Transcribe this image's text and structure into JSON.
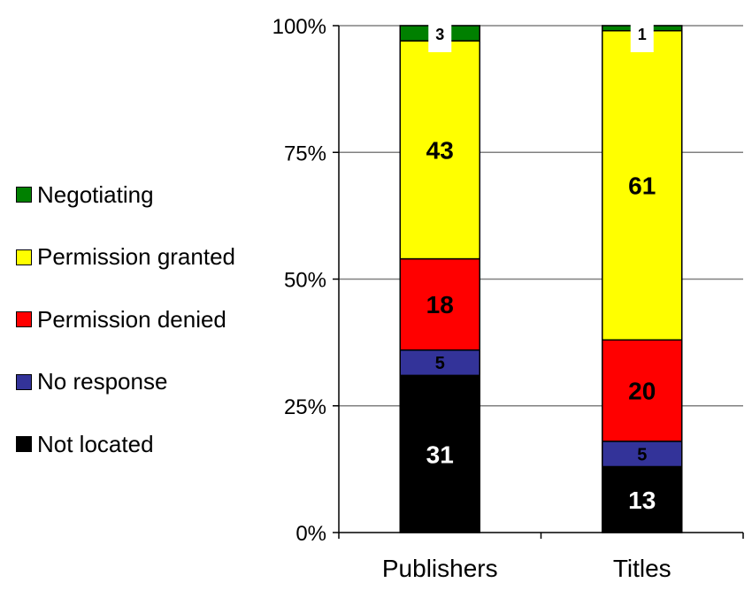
{
  "chart_data": {
    "type": "bar",
    "stacked": "percent",
    "categories": [
      "Publishers",
      "Titles"
    ],
    "series": [
      {
        "name": "Not located",
        "color": "#000000",
        "values": [
          31,
          13
        ],
        "label_color": "#ffffff"
      },
      {
        "name": "No response",
        "color": "#333399",
        "values": [
          5,
          5
        ],
        "label_color": "#000000"
      },
      {
        "name": "Permission denied",
        "color": "#ff0000",
        "values": [
          18,
          20
        ],
        "label_color": "#000000"
      },
      {
        "name": "Permission granted",
        "color": "#ffff00",
        "values": [
          43,
          61
        ],
        "label_color": "#000000"
      },
      {
        "name": "Negotiating",
        "color": "#008000",
        "values": [
          3,
          1
        ],
        "label_color": "#000000"
      }
    ],
    "yticks": [
      "0%",
      "25%",
      "50%",
      "75%",
      "100%"
    ],
    "ylim": [
      0,
      100
    ],
    "grid": true,
    "legend_position": "left",
    "legend_order": [
      "Negotiating",
      "Permission granted",
      "Permission denied",
      "No response",
      "Not located"
    ]
  }
}
